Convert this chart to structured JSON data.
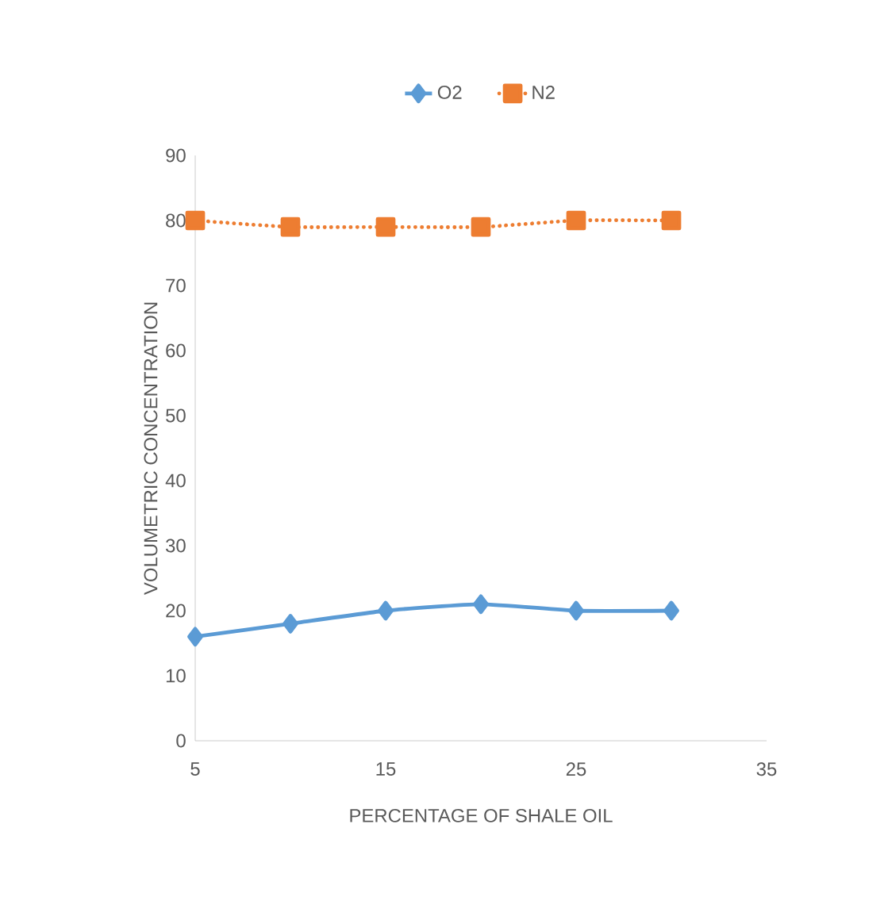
{
  "chart_data": {
    "type": "line",
    "xlabel": "PERCENTAGE OF SHALE OIL",
    "ylabel": "VOLUMETRIC CONCENTRATION",
    "x": [
      5,
      10,
      15,
      20,
      25,
      30
    ],
    "series": [
      {
        "name": "O2",
        "color": "#5b9bd5",
        "values": [
          16,
          18,
          20,
          21,
          20,
          20
        ],
        "marker": "diamond",
        "line_style": "solid"
      },
      {
        "name": "N2",
        "color": "#ed7d31",
        "values": [
          80,
          79,
          79,
          79,
          80,
          80
        ],
        "marker": "square",
        "line_style": "dotted"
      }
    ],
    "xlim": [
      5,
      35
    ],
    "xticks": [
      5,
      15,
      25,
      35
    ],
    "ylim": [
      0,
      90
    ],
    "yticks": [
      0,
      10,
      20,
      30,
      40,
      50,
      60,
      70,
      80,
      90
    ],
    "grid": false,
    "legend": "top"
  }
}
